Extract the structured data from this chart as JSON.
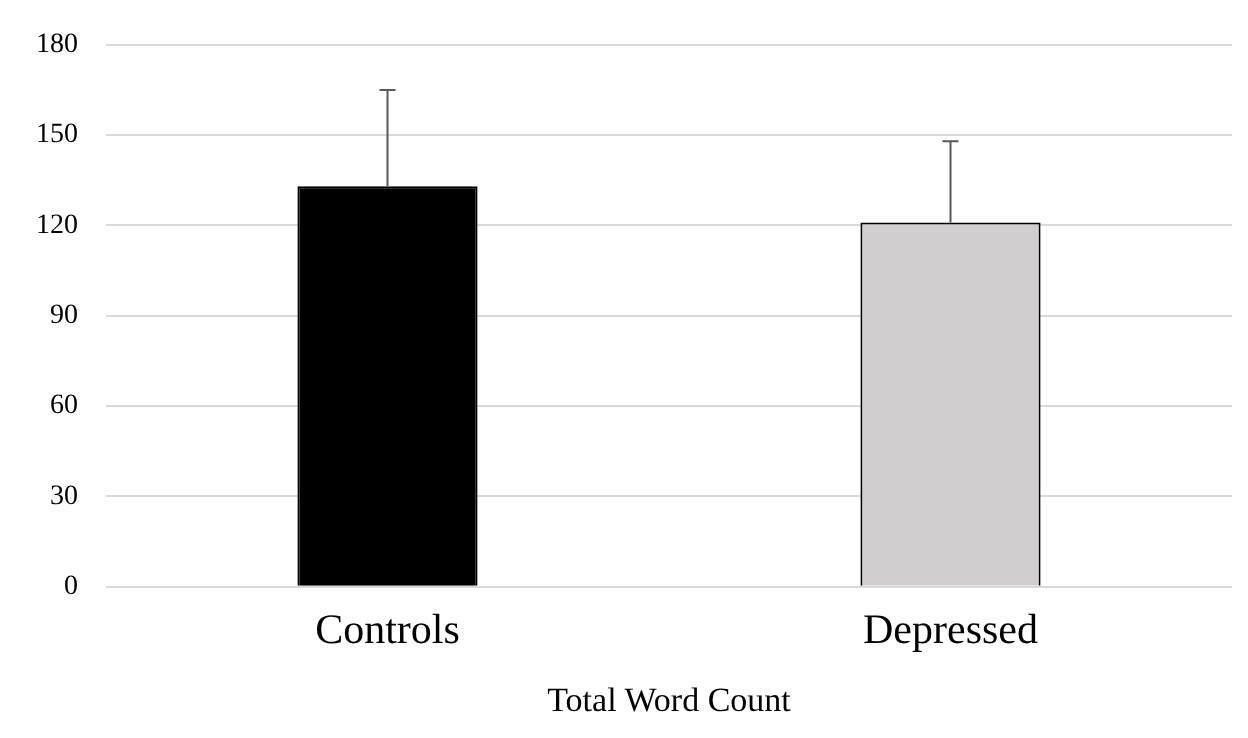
{
  "chart_data": {
    "type": "bar",
    "xlabel": "Total Word Count",
    "categories": [
      "Controls",
      "Depressed"
    ],
    "values": [
      133,
      121
    ],
    "colors": [
      "#000000",
      "#d0cece"
    ],
    "errors": [
      [
        133,
        165
      ],
      [
        121,
        148
      ]
    ],
    "ylim": [
      0,
      180
    ],
    "yticks": [
      0,
      30,
      60,
      90,
      120,
      150,
      180
    ],
    "grid": "y",
    "legend": false
  }
}
